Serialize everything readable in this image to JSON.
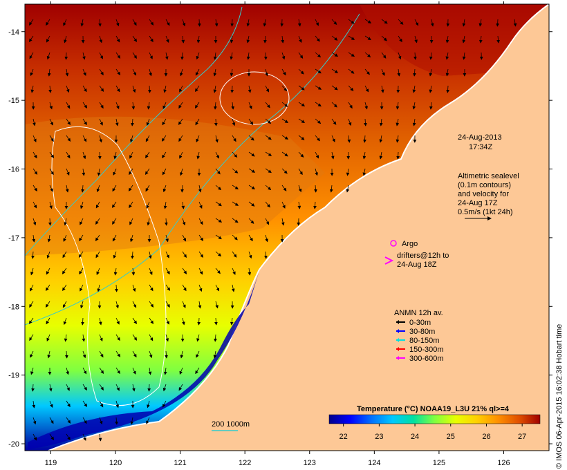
{
  "timestamp": {
    "date": "24-Aug-2013",
    "time": "17:34Z"
  },
  "altimetry": {
    "lines": [
      "Altimetric sealevel",
      "(0.1m contours)",
      "and velocity for",
      "24-Aug 17Z",
      "0.5m/s (1kt 24h)"
    ]
  },
  "argo": {
    "label": "Argo"
  },
  "drifters": {
    "lines": [
      "drifters@12h to",
      "24-Aug 18Z"
    ]
  },
  "anmn": {
    "title": "ANMN 12h av.",
    "items": [
      {
        "label": "0-30m",
        "color": "#000000"
      },
      {
        "label": "30-80m",
        "color": "#0000ff"
      },
      {
        "label": "80-150m",
        "color": "#00e0e0"
      },
      {
        "label": "150-300m",
        "color": "#ff0000"
      },
      {
        "label": "300-600m",
        "color": "#ff00ff"
      }
    ]
  },
  "colorbar": {
    "title": "Temperature (°C) NOAA19_L3U 21% ql>=4",
    "ticks": [
      "22",
      "23",
      "24",
      "25",
      "26",
      "27"
    ],
    "range": [
      21.6,
      27.5
    ],
    "colors": [
      "#00008b",
      "#0000ff",
      "#0070ff",
      "#00c8ff",
      "#00e0a0",
      "#80ff40",
      "#e8ff00",
      "#ffd000",
      "#ff9000",
      "#e05000",
      "#a00000"
    ]
  },
  "isobaths": {
    "label": "200  1000m",
    "color": "#33cccc"
  },
  "axes": {
    "lon_ticks": [
      "119",
      "120",
      "121",
      "122",
      "123",
      "124",
      "125",
      "126"
    ],
    "lat_ticks": [
      "-14",
      "-15",
      "-16",
      "-17",
      "-18",
      "-19",
      "-20"
    ],
    "lon_range": [
      118.6,
      126.7
    ],
    "lat_range": [
      -20.1,
      -13.6
    ]
  },
  "credit": "© IMOS 06-Apr-2015 16:02:38 Hobart time",
  "colors": {
    "land": "#fdc896",
    "coast": "#ffffff",
    "sealevel_contour": "#ffffff",
    "argo": "#ff00ff",
    "drifter": "#ff00ff"
  }
}
